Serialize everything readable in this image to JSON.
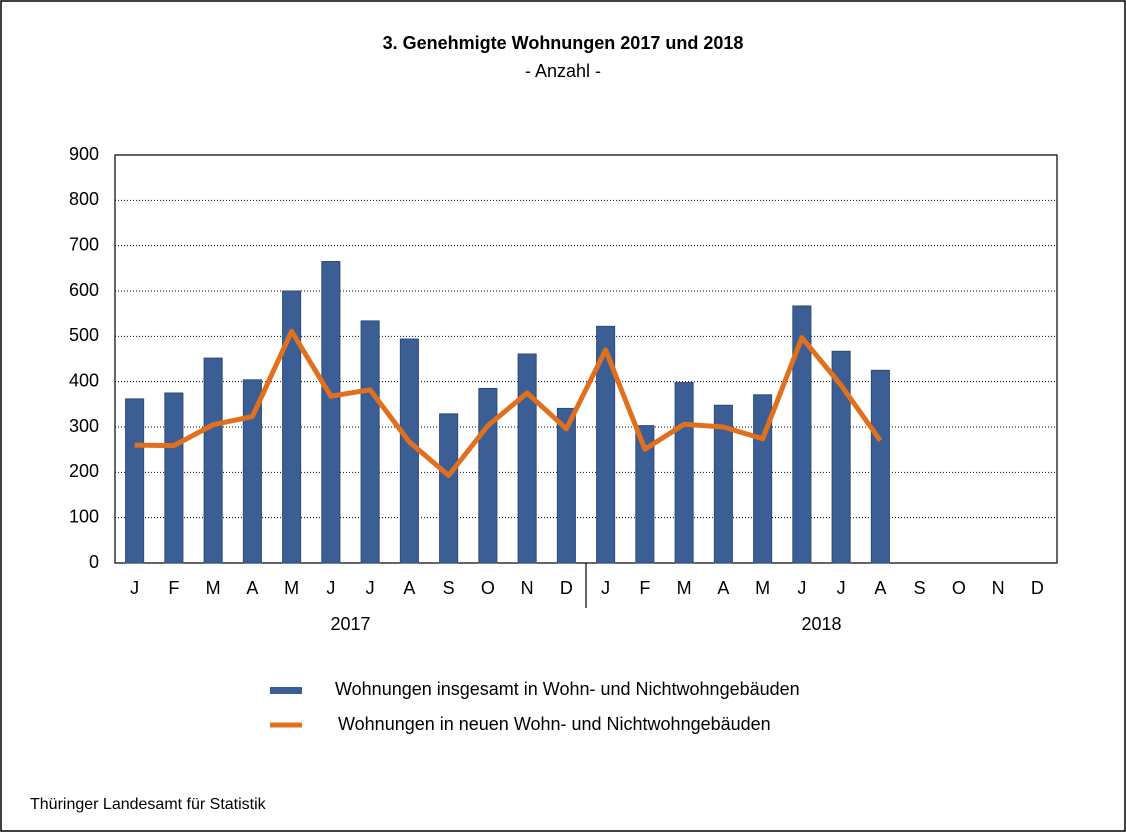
{
  "chart_data": {
    "type": "bar_line",
    "title": "3. Genehmigte Wohnungen 2017 und 2018",
    "subtitle": "- Anzahl -",
    "categories": [
      "J",
      "F",
      "M",
      "A",
      "M",
      "J",
      "J",
      "A",
      "S",
      "O",
      "N",
      "D",
      "J",
      "F",
      "M",
      "A",
      "M",
      "J",
      "J",
      "A",
      "S",
      "O",
      "N",
      "D"
    ],
    "groups": [
      "2017",
      "2018"
    ],
    "series": [
      {
        "name": "Wohnungen insgesamt in Wohn- und Nichtwohngebäuden",
        "type": "bar",
        "color": "#3b5f95",
        "values": [
          362,
          375,
          452,
          404,
          600,
          665,
          534,
          494,
          329,
          385,
          461,
          341,
          522,
          303,
          398,
          348,
          371,
          567,
          467,
          425,
          null,
          null,
          null,
          null
        ]
      },
      {
        "name": "Wohnungen in neuen Wohn- und Nichtwohngebäuden",
        "type": "line",
        "color": "#e0701e",
        "values": [
          260,
          259,
          305,
          323,
          511,
          368,
          382,
          267,
          193,
          303,
          375,
          296,
          470,
          251,
          306,
          300,
          274,
          497,
          392,
          270,
          null,
          null,
          null,
          null
        ]
      }
    ],
    "ylim": [
      0,
      900
    ],
    "yticks": [
      0,
      100,
      200,
      300,
      400,
      500,
      600,
      700,
      800,
      900
    ],
    "grid": true,
    "source": "Thüringer Landesamt für Statistik"
  }
}
